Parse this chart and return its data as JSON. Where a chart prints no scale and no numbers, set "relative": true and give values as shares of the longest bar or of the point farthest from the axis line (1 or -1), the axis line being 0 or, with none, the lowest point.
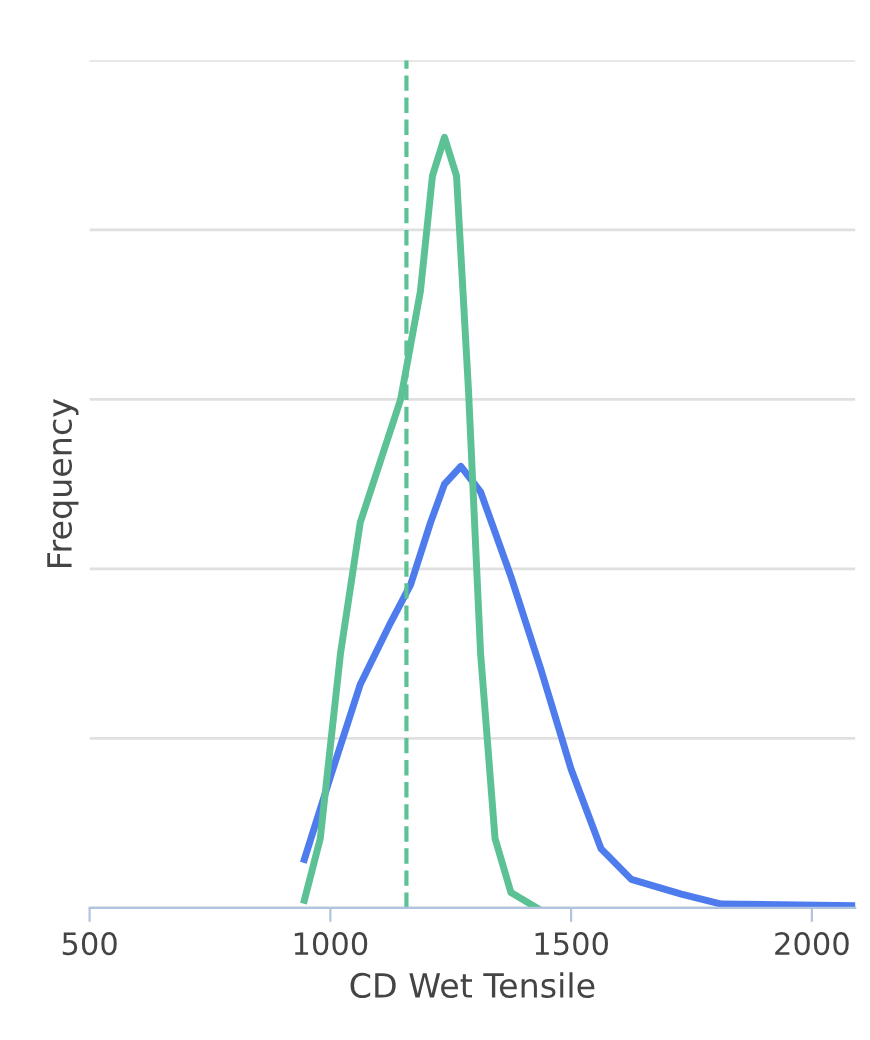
{
  "chart_data": {
    "type": "line",
    "relative": true,
    "xlabel": "CD Wet Tensile",
    "ylabel": "Frequency",
    "xlim": [
      500,
      2090
    ],
    "xticks": [
      500,
      1000,
      1500,
      2000
    ],
    "grid": "y",
    "legend": false,
    "marker": "none",
    "line_style": "solid",
    "series": [
      {
        "color": "#4f7cec",
        "x": [
          946,
          1000,
          1062,
          1125,
          1167,
          1208,
          1237,
          1271,
          1312,
          1375,
          1437,
          1500,
          1562,
          1625,
          1729,
          1812,
          2090
        ],
        "values": [
          0.063,
          0.17,
          0.29,
          0.37,
          0.42,
          0.5,
          0.55,
          0.573,
          0.54,
          0.43,
          0.31,
          0.18,
          0.077,
          0.037,
          0.018,
          0.005,
          0.003
        ]
      },
      {
        "color": "#5cc194",
        "x": [
          946,
          979,
          1021,
          1062,
          1104,
          1146,
          1187,
          1212,
          1237,
          1262,
          1287,
          1312,
          1342,
          1375,
          1429
        ],
        "values": [
          0.01,
          0.09,
          0.33,
          0.5,
          0.58,
          0.66,
          0.8,
          0.95,
          1.0,
          0.95,
          0.67,
          0.33,
          0.09,
          0.02,
          0
        ]
      }
    ],
    "ref_lines": [
      {
        "axis": "x",
        "value": 1158,
        "color": "#5cc194",
        "line_style": "dashed"
      }
    ]
  }
}
